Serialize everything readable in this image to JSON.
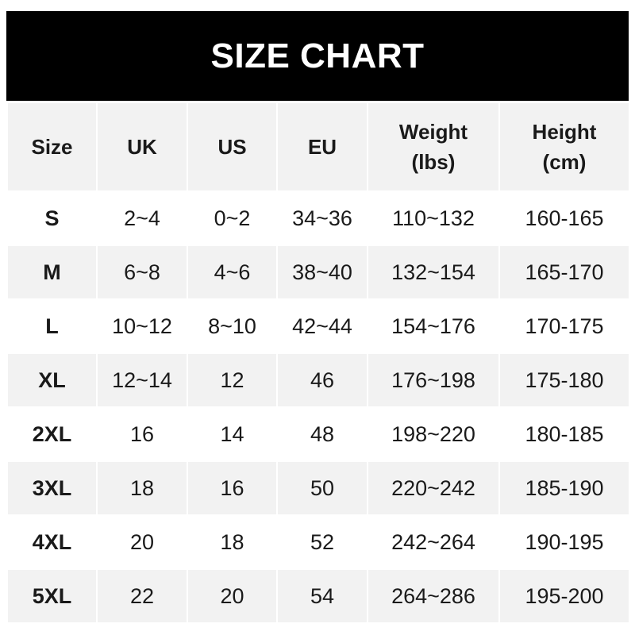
{
  "title": "SIZE CHART",
  "chart_data": {
    "type": "table",
    "title": "SIZE CHART",
    "columns": [
      "Size",
      "UK",
      "US",
      "EU",
      "Weight\n(lbs)",
      "Height\n(cm)"
    ],
    "rows": [
      [
        "S",
        "2~4",
        "0~2",
        "34~36",
        "110~132",
        "160-165"
      ],
      [
        "M",
        "6~8",
        "4~6",
        "38~40",
        "132~154",
        "165-170"
      ],
      [
        "L",
        "10~12",
        "8~10",
        "42~44",
        "154~176",
        "170-175"
      ],
      [
        "XL",
        "12~14",
        "12",
        "46",
        "176~198",
        "175-180"
      ],
      [
        "2XL",
        "16",
        "14",
        "48",
        "198~220",
        "180-185"
      ],
      [
        "3XL",
        "18",
        "16",
        "50",
        "220~242",
        "185-190"
      ],
      [
        "4XL",
        "20",
        "18",
        "52",
        "242~264",
        "190-195"
      ],
      [
        "5XL",
        "22",
        "20",
        "54",
        "264~286",
        "195-200"
      ]
    ]
  },
  "colors": {
    "header_bg": "#000000",
    "stripe": "#f2f2f2",
    "text": "#1a1a1a"
  }
}
